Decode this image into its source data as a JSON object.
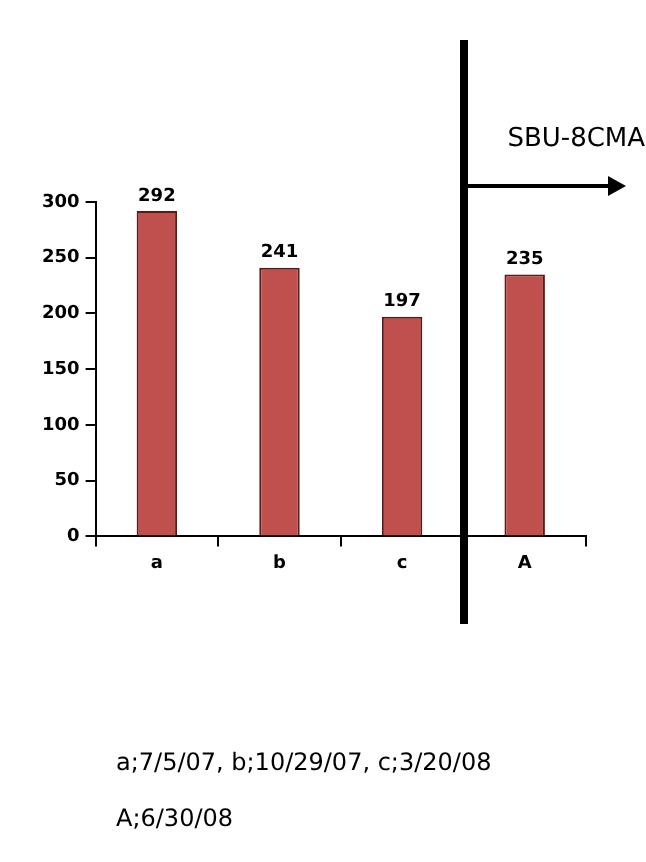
{
  "chart_data": {
    "type": "bar",
    "categories": [
      "a",
      "b",
      "c",
      "A"
    ],
    "values": [
      292,
      241,
      197,
      235
    ],
    "color": "#c0504d",
    "ylim": [
      0,
      300
    ],
    "yticks": [
      0,
      50,
      100,
      150,
      200,
      250,
      300
    ],
    "data_labels": true,
    "annotations": [
      "SBU-8CMA",
      "a;7/5/07, b;10/29/07, c;3/20/08",
      "A;6/30/08"
    ]
  }
}
